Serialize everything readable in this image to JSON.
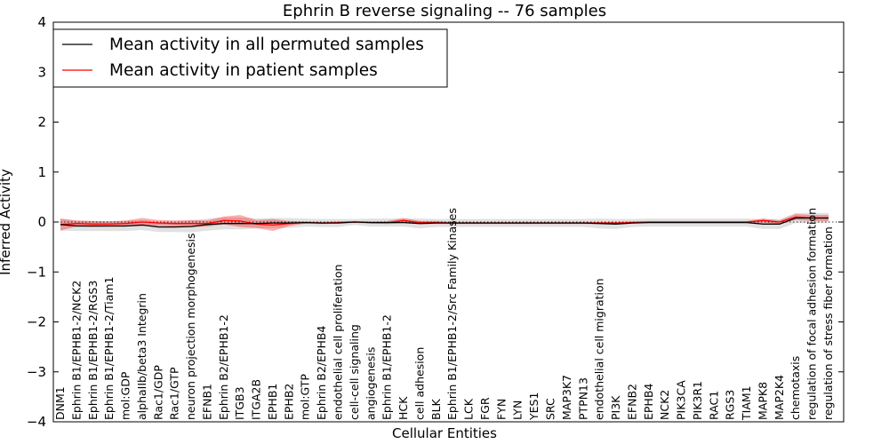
{
  "chart_data": {
    "type": "line",
    "title": "Ephrin B reverse signaling -- 76 samples",
    "xlabel": "Cellular Entities",
    "ylabel": "Inferred Activity",
    "ylim": [
      -4,
      4
    ],
    "yticks": [
      -4,
      -3,
      -2,
      -1,
      0,
      1,
      2,
      3,
      4
    ],
    "ytick_labels": [
      "−4",
      "−3",
      "−2",
      "−1",
      "0",
      "1",
      "2",
      "3",
      "4"
    ],
    "grid": false,
    "legend_position": "top-left",
    "categories": [
      "DNM1",
      "Ephrin B1/EPHB1-2/NCK2",
      "Ephrin B1/EPHB1-2/RGS3",
      "Ephrin B1/EPHB1-2/Tiam1",
      "mol:GDP",
      "alphaIIb/beta3 Integrin",
      "Rac1/GDP",
      "Rac1/GTP",
      "neuron projection morphogenesis",
      "EFNB1",
      "Ephrin B2/EPHB1-2",
      "ITGB3",
      "ITGA2B",
      "EPHB1",
      "EPHB2",
      "mol:GTP",
      "Ephrin B2/EPHB4",
      "endothelial cell proliferation",
      "cell-cell signaling",
      "angiogenesis",
      "Ephrin B1/EPHB1-2",
      "HCK",
      "cell adhesion",
      "BLK",
      "Ephrin B1/EPHB1-2/Src Family Kinases",
      "LCK",
      "FGR",
      "FYN",
      "LYN",
      "YES1",
      "SRC",
      "MAP3K7",
      "PTPN13",
      "endothelial cell migration",
      "PI3K",
      "EFNB2",
      "EPHB4",
      "NCK2",
      "PIK3CA",
      "PIK3R1",
      "RAC1",
      "RGS3",
      "TIAM1",
      "MAPK8",
      "MAP2K4",
      "chemotaxis",
      "regulation of focal adhesion formation",
      "regulation of stress fiber formation"
    ],
    "series": [
      {
        "name": "Mean activity in all permuted samples",
        "color": "#000000",
        "values": [
          -0.05,
          -0.08,
          -0.08,
          -0.08,
          -0.08,
          -0.06,
          -0.1,
          -0.1,
          -0.09,
          -0.05,
          -0.03,
          -0.03,
          -0.03,
          -0.02,
          -0.02,
          -0.01,
          -0.02,
          -0.02,
          0,
          -0.01,
          -0.01,
          -0.01,
          -0.03,
          -0.02,
          -0.02,
          -0.02,
          -0.02,
          -0.02,
          -0.02,
          -0.02,
          -0.02,
          -0.02,
          -0.02,
          -0.03,
          -0.04,
          -0.02,
          -0.01,
          -0.01,
          -0.01,
          -0.01,
          -0.01,
          -0.01,
          -0.01,
          -0.04,
          -0.04,
          0.08,
          0.08,
          0.08
        ],
        "band": [
          0.12,
          0.1,
          0.1,
          0.1,
          0.1,
          0.1,
          0.1,
          0.1,
          0.12,
          0.12,
          0.12,
          0.12,
          0.1,
          0.1,
          0.1,
          0.08,
          0.08,
          0.08,
          0.06,
          0.08,
          0.08,
          0.08,
          0.1,
          0.08,
          0.08,
          0.08,
          0.08,
          0.08,
          0.08,
          0.08,
          0.08,
          0.08,
          0.08,
          0.1,
          0.1,
          0.08,
          0.08,
          0.08,
          0.08,
          0.08,
          0.08,
          0.08,
          0.08,
          0.1,
          0.1,
          0.1,
          0.1,
          0.1
        ]
      },
      {
        "name": "Mean activity in patient samples",
        "color": "#ff0000",
        "values": [
          -0.05,
          -0.03,
          -0.04,
          -0.04,
          -0.03,
          0,
          -0.02,
          -0.03,
          -0.03,
          -0.03,
          0.03,
          0.02,
          -0.04,
          -0.06,
          -0.03,
          -0.01,
          -0.02,
          -0.01,
          0,
          -0.01,
          -0.01,
          0.03,
          -0.01,
          -0.01,
          -0.02,
          -0.02,
          -0.02,
          -0.02,
          -0.02,
          -0.02,
          -0.02,
          -0.02,
          -0.02,
          -0.02,
          -0.02,
          -0.01,
          0,
          0,
          0,
          0,
          0,
          0,
          0,
          0.03,
          0,
          0.1,
          0.08,
          0.08
        ],
        "band": [
          0.12,
          0.06,
          0.06,
          0.05,
          0.06,
          0.08,
          0.06,
          0.06,
          0.07,
          0.06,
          0.08,
          0.12,
          0.08,
          0.12,
          0.05,
          0.02,
          0.02,
          0.02,
          0.02,
          0.02,
          0.03,
          0.05,
          0.03,
          0.03,
          0.02,
          0.02,
          0.02,
          0.02,
          0.02,
          0.02,
          0.02,
          0.02,
          0.02,
          0.02,
          0.02,
          0.02,
          0.02,
          0.02,
          0.02,
          0.02,
          0.02,
          0.02,
          0.02,
          0.04,
          0.03,
          0.06,
          0.06,
          0.06
        ]
      }
    ]
  }
}
